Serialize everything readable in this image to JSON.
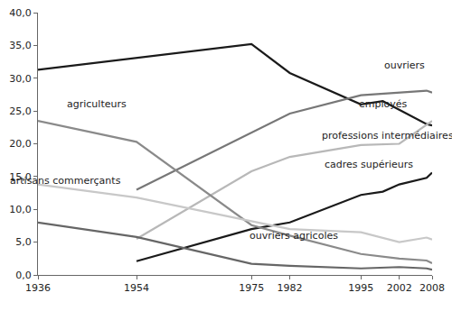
{
  "chart_data": {
    "type": "line",
    "xlim": [
      1936,
      2008
    ],
    "xticks": [
      1936,
      1954,
      1975,
      1982,
      1995,
      2002,
      2008
    ],
    "ylim": [
      0,
      40
    ],
    "yticks": [
      {
        "value": 0,
        "label": "0,0"
      },
      {
        "value": 5,
        "label": "5,0"
      },
      {
        "value": 10,
        "label": "10,0"
      },
      {
        "value": 15,
        "label": "15,0"
      },
      {
        "value": 20,
        "label": "20,0"
      },
      {
        "value": 25,
        "label": "25,0"
      },
      {
        "value": 30,
        "label": "30,0"
      },
      {
        "value": 35,
        "label": "35,0"
      },
      {
        "value": 40,
        "label": "40,0"
      }
    ],
    "grid": false,
    "series": [
      {
        "name": "ouvriers",
        "color": "#1a1a1a",
        "x": [
          1936,
          1975,
          1982,
          1995,
          1999,
          2007,
          2008
        ],
        "values": [
          31.3,
          35.2,
          30.8,
          26.0,
          26.5,
          23.0,
          22.8
        ]
      },
      {
        "name": "employés",
        "color": "#777777",
        "x": [
          1954,
          1982,
          1995,
          2002,
          2007,
          2008
        ],
        "values": [
          13.0,
          24.6,
          27.4,
          27.8,
          28.1,
          27.8
        ]
      },
      {
        "name": "professions intermédiaires",
        "color": "#b8b8b8",
        "x": [
          1954,
          1975,
          1982,
          1995,
          2002,
          2008
        ],
        "values": [
          5.5,
          15.8,
          18.0,
          19.8,
          20.0,
          23.5
        ]
      },
      {
        "name": "cadres supérieurs",
        "color": "#1a1a1a",
        "x": [
          1954,
          1975,
          1982,
          1995,
          1999,
          2002,
          2007,
          2008
        ],
        "values": [
          2.1,
          7.0,
          8.0,
          12.2,
          12.7,
          13.8,
          14.8,
          15.6
        ]
      },
      {
        "name": "agriculteurs",
        "color": "#8a8a8a",
        "x": [
          1936,
          1954,
          1975,
          1982,
          1995,
          2002,
          2007,
          2008
        ],
        "values": [
          23.5,
          20.3,
          7.6,
          6.0,
          3.2,
          2.5,
          2.2,
          1.8
        ]
      },
      {
        "name": "artisans commerçants",
        "color": "#c8c8c8",
        "x": [
          1936,
          1954,
          1975,
          1982,
          1995,
          2002,
          2007,
          2008
        ],
        "values": [
          13.8,
          11.8,
          8.2,
          7.0,
          6.5,
          5.0,
          5.7,
          5.4
        ]
      },
      {
        "name": "ouvriers agricoles",
        "color": "#666666",
        "x": [
          1936,
          1954,
          1975,
          1982,
          1995,
          2002,
          2007,
          2008
        ],
        "values": [
          8.0,
          5.8,
          1.7,
          1.4,
          1.0,
          1.2,
          1.0,
          0.8
        ]
      }
    ]
  }
}
